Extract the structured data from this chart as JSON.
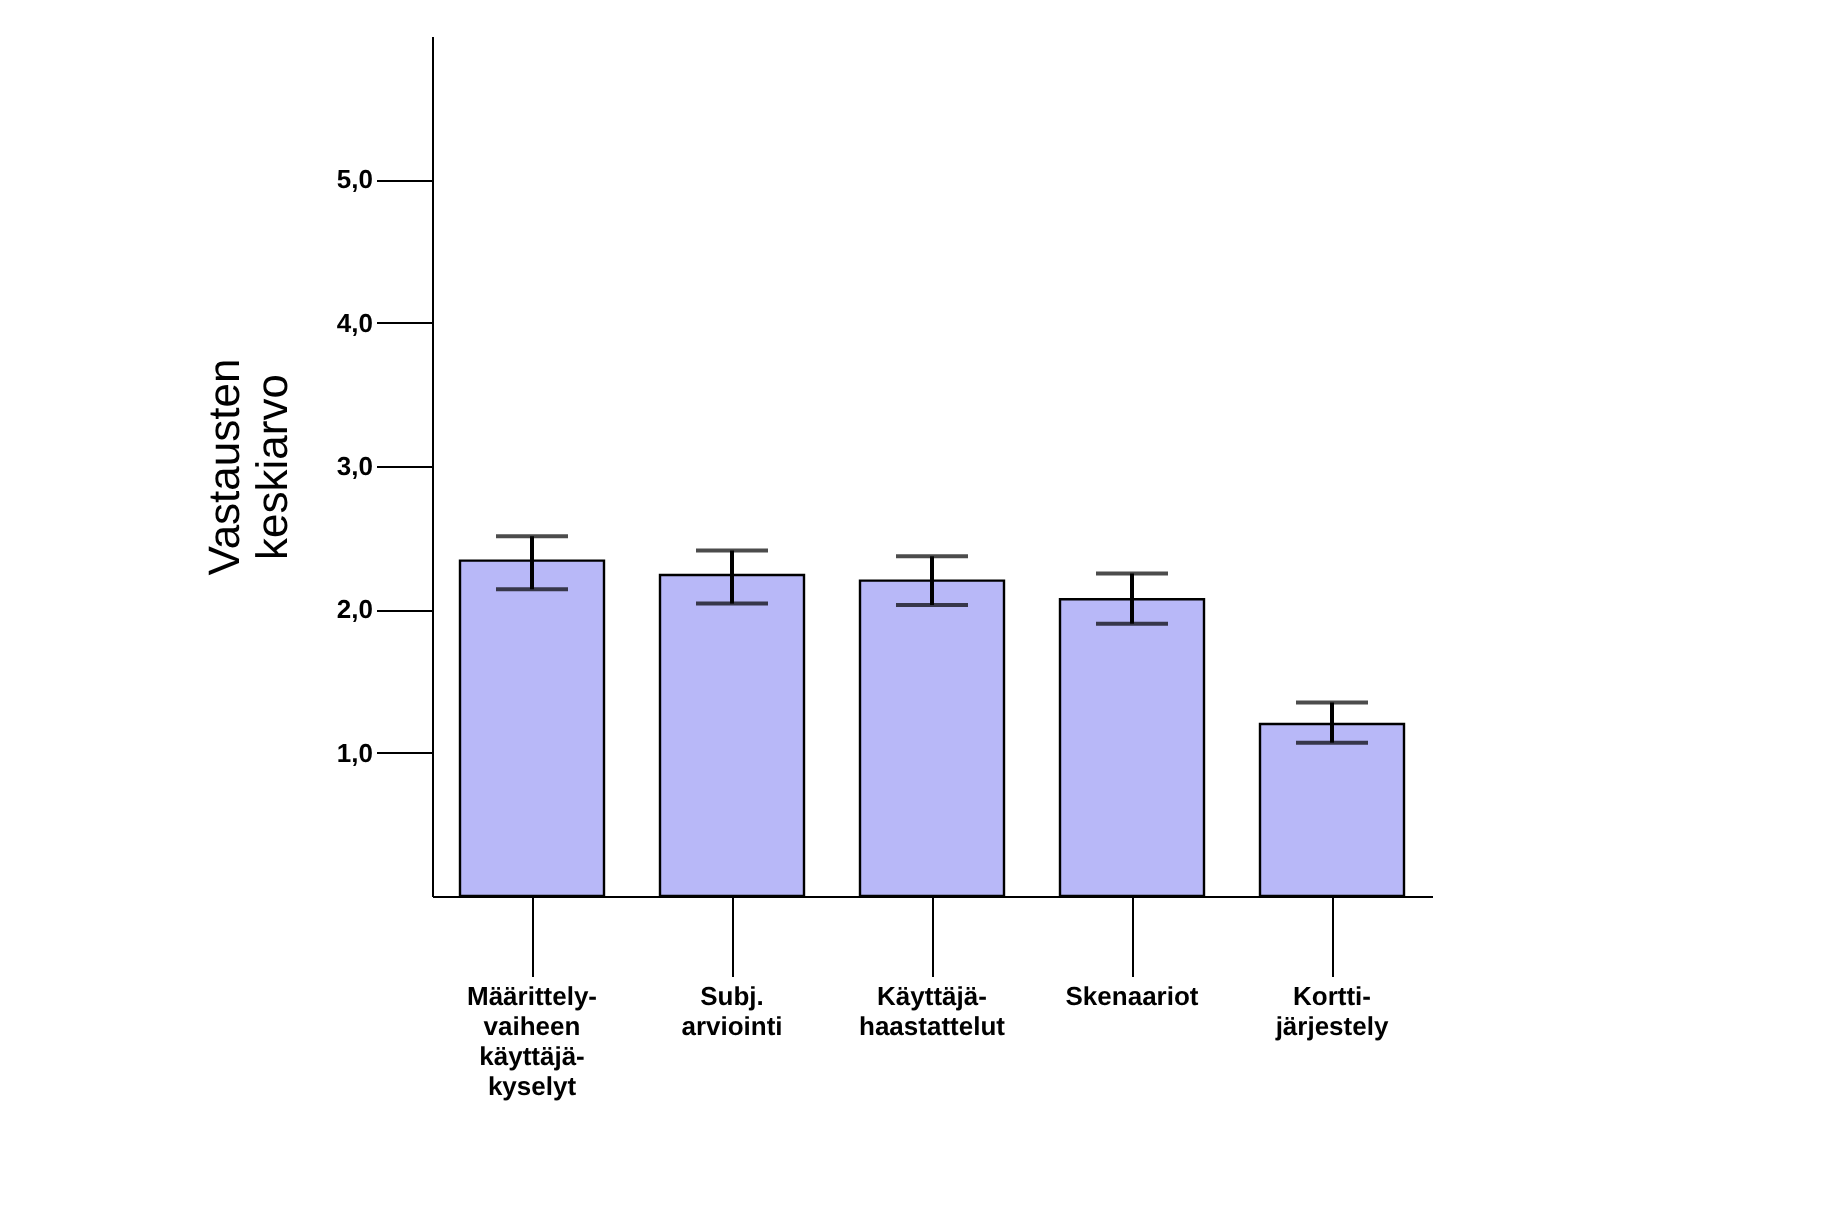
{
  "chart_data": {
    "type": "bar",
    "categories": [
      "Määrittely-\nvaiheen\nkäyttäjä-\nkyselyt",
      "Subj.\narviointi",
      "Käyttäjä-\nhaastattelut",
      "Skenaariot",
      "Kortti-\njärjestely"
    ],
    "values": [
      2.34,
      2.24,
      2.2,
      2.07,
      1.2
    ],
    "errors": [
      [
        2.14,
        2.51
      ],
      [
        2.04,
        2.41
      ],
      [
        2.03,
        2.37
      ],
      [
        1.9,
        2.25
      ],
      [
        1.07,
        1.35
      ]
    ],
    "color": "#b8b8f8",
    "ylabel": "Vastausten\nkeskiarvo",
    "ylim": [
      0,
      6
    ],
    "yticks": [
      {
        "value": 1,
        "label": "1,0"
      },
      {
        "value": 2,
        "label": "2,0"
      },
      {
        "value": 3,
        "label": "3,0"
      },
      {
        "value": 4,
        "label": "4,0"
      },
      {
        "value": 5,
        "label": "5,0"
      }
    ],
    "grid": false
  }
}
